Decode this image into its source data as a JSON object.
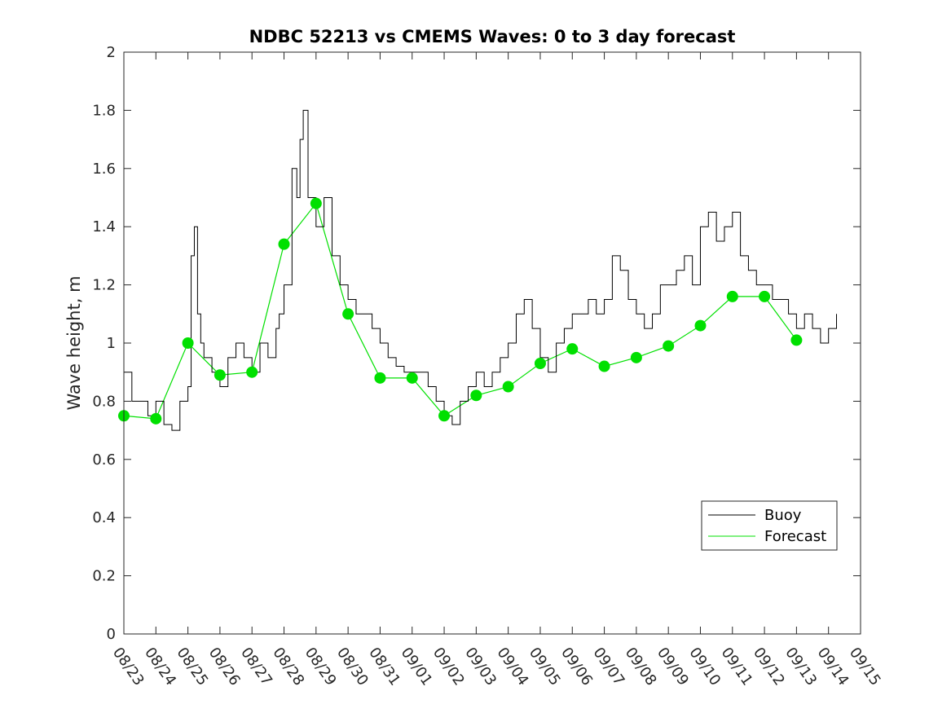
{
  "chart_data": {
    "type": "line",
    "title": "NDBC 52213 vs CMEMS Waves: 0 to 3 day forecast",
    "xlabel": "",
    "ylabel": "Wave height, m",
    "ylim": [
      0,
      2
    ],
    "yticks": [
      "0",
      "0.2",
      "0.4",
      "0.6",
      "0.8",
      "1",
      "1.2",
      "1.4",
      "1.6",
      "1.8",
      "2"
    ],
    "x_tick_labels": [
      "08/23",
      "08/24",
      "08/25",
      "08/26",
      "08/27",
      "08/28",
      "08/29",
      "08/30",
      "08/31",
      "09/01",
      "09/02",
      "09/03",
      "09/04",
      "09/05",
      "09/06",
      "09/07",
      "09/08",
      "09/09",
      "09/10",
      "09/11",
      "09/12",
      "09/13",
      "09/14",
      "09/15"
    ],
    "x_unit": "days since 08/23",
    "xlim": [
      0,
      23
    ],
    "grid": false,
    "legend": {
      "position": "bottom-right",
      "entries": [
        {
          "label": "Buoy",
          "color": "#000000"
        },
        {
          "label": "Forecast",
          "color": "#00e000"
        }
      ]
    },
    "colors": {
      "buoy": "#000000",
      "forecast": "#00e000",
      "marker": "#00e000"
    },
    "series": [
      {
        "name": "Buoy",
        "x": [
          0,
          0.25,
          0.5,
          0.75,
          1,
          1.25,
          1.5,
          1.75,
          2,
          2.1,
          2.2,
          2.3,
          2.4,
          2.5,
          2.75,
          3,
          3.25,
          3.5,
          3.75,
          4,
          4.25,
          4.5,
          4.75,
          4.85,
          5,
          5.25,
          5.4,
          5.5,
          5.6,
          5.75,
          6,
          6.25,
          6.5,
          6.75,
          7,
          7.25,
          7.5,
          7.75,
          8,
          8.25,
          8.5,
          8.75,
          9,
          9.25,
          9.5,
          9.75,
          10,
          10.25,
          10.5,
          10.75,
          11,
          11.25,
          11.5,
          11.75,
          12,
          12.25,
          12.5,
          12.75,
          13,
          13.25,
          13.5,
          13.75,
          14,
          14.25,
          14.5,
          14.75,
          15,
          15.25,
          15.5,
          15.75,
          16,
          16.25,
          16.5,
          16.75,
          17,
          17.25,
          17.5,
          17.75,
          18,
          18.25,
          18.5,
          18.75,
          19,
          19.25,
          19.5,
          19.75,
          20,
          20.25,
          20.5,
          20.75,
          21,
          21.25,
          21.5,
          21.75,
          22,
          22.25
        ],
        "y": [
          0.9,
          0.8,
          0.8,
          0.75,
          0.8,
          0.72,
          0.7,
          0.8,
          0.85,
          1.3,
          1.4,
          1.1,
          1.0,
          0.95,
          0.9,
          0.85,
          0.95,
          1.0,
          0.95,
          0.9,
          1.0,
          0.95,
          1.05,
          1.1,
          1.2,
          1.6,
          1.5,
          1.7,
          1.8,
          1.5,
          1.4,
          1.5,
          1.3,
          1.2,
          1.15,
          1.1,
          1.1,
          1.05,
          1.0,
          0.95,
          0.92,
          0.9,
          0.9,
          0.9,
          0.85,
          0.8,
          0.75,
          0.72,
          0.8,
          0.85,
          0.9,
          0.85,
          0.9,
          0.95,
          1.0,
          1.1,
          1.15,
          1.05,
          0.95,
          0.9,
          1.0,
          1.05,
          1.1,
          1.1,
          1.15,
          1.1,
          1.15,
          1.3,
          1.25,
          1.15,
          1.1,
          1.05,
          1.1,
          1.2,
          1.2,
          1.25,
          1.3,
          1.2,
          1.4,
          1.45,
          1.35,
          1.4,
          1.45,
          1.3,
          1.25,
          1.2,
          1.2,
          1.15,
          1.15,
          1.1,
          1.05,
          1.1,
          1.05,
          1.0,
          1.05,
          1.1
        ]
      },
      {
        "name": "Forecast",
        "x": [
          0,
          1,
          2,
          3,
          4,
          5,
          6,
          7,
          8,
          9,
          10,
          11,
          12,
          13,
          14,
          15,
          16,
          17,
          18,
          19,
          20,
          21
        ],
        "y": [
          0.75,
          0.74,
          1.0,
          0.89,
          0.9,
          1.34,
          1.48,
          1.1,
          0.88,
          0.88,
          0.75,
          0.82,
          0.85,
          0.93,
          0.98,
          0.92,
          0.95,
          0.99,
          1.06,
          1.16,
          1.16,
          1.01
        ]
      }
    ]
  }
}
